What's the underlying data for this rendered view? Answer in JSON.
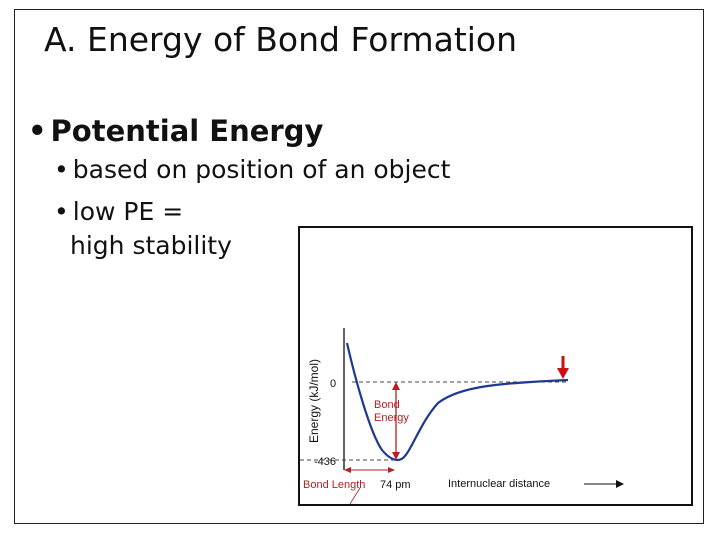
{
  "slide": {
    "title": "A.  Energy of Bond Formation",
    "bullet_main": "Potential Energy",
    "sub_bullets": [
      "based on position of an object",
      "low PE =",
      "high stability"
    ]
  },
  "chart_data": {
    "type": "line",
    "ylabel": "Energy (kJ/mol)",
    "xlabel": "Internuclear distance",
    "y_ticks": [
      "0",
      "-436"
    ],
    "annotations": {
      "bond_energy_line1": "Bond",
      "bond_energy_line2": "Energy",
      "bond_length": "Bond Length",
      "distance_value": "74 pm"
    },
    "min_energy": -436,
    "bond_length_pm": 74,
    "series": [
      {
        "values": [
          {
            "x": 0.05,
            "y": 300
          },
          {
            "x": 0.22,
            "y": -250
          },
          {
            "x": 0.3,
            "y": -430
          },
          {
            "x": 0.35,
            "y": -436
          },
          {
            "x": 0.42,
            "y": -360
          },
          {
            "x": 0.55,
            "y": -110
          },
          {
            "x": 0.7,
            "y": -40
          },
          {
            "x": 1.0,
            "y": 0
          }
        ]
      }
    ],
    "colors": {
      "curve": "#1f3a8f",
      "arrow_red": "#cc1111",
      "axis": "#111111",
      "label_red": "#b32222"
    }
  }
}
